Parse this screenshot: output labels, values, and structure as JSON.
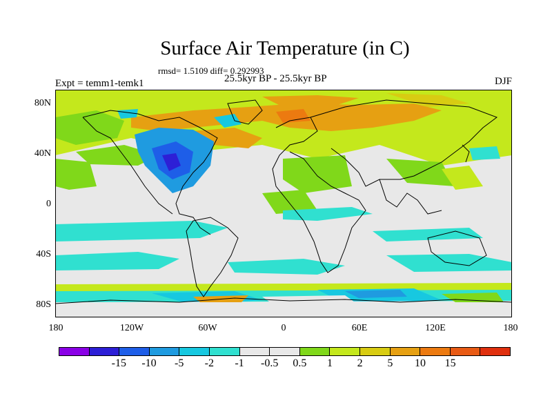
{
  "figure": {
    "title": "Surface Air Temperature (in C)",
    "stats": "rmsd= 1.5109 diff= 0.292993",
    "period": "25.5kyr BP - 25.5kyr BP",
    "experiment": "Expt = temm1-temk1",
    "season": "DJF"
  },
  "axes": {
    "lat_labels": [
      "80N",
      "40N",
      "0",
      "40S",
      "80S"
    ],
    "lon_labels": [
      "180",
      "120W",
      "60W",
      "0",
      "60E",
      "120E",
      "180"
    ]
  },
  "colorbar": {
    "colors": [
      "#8a00e6",
      "#2d1fd6",
      "#1e5ee8",
      "#1f9be0",
      "#17c8e0",
      "#30e0d0",
      "#e8e8e8",
      "#e8e8e8",
      "#80d81a",
      "#c4e81c",
      "#d8cc12",
      "#e6a012",
      "#ec7a10",
      "#e85a14",
      "#e0300e"
    ],
    "labels": [
      "-15",
      "-10",
      "-5",
      "-2",
      "-1",
      "-0.5",
      "0.5",
      "1",
      "2",
      "5",
      "10",
      "15"
    ]
  }
}
